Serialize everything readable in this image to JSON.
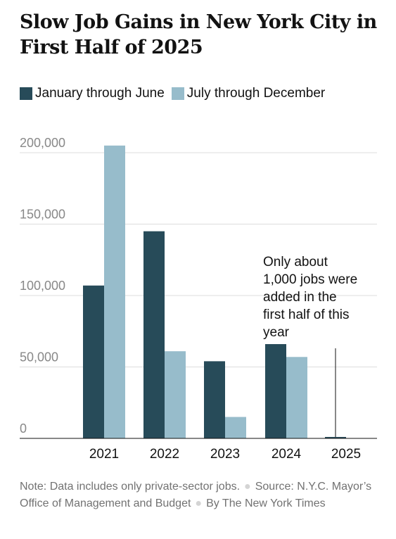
{
  "title": "Slow Job Gains in New York City in First Half of 2025",
  "colors": {
    "first_half": "#274b59",
    "second_half": "#97bccb",
    "grid": "#dddddd",
    "axis": "#121212",
    "tick_text": "#888888"
  },
  "chart_data": {
    "type": "bar",
    "categories": [
      "2021",
      "2022",
      "2023",
      "2024",
      "2025"
    ],
    "series": [
      {
        "name": "January through June",
        "values": [
          107000,
          145000,
          54000,
          66000,
          1000
        ]
      },
      {
        "name": "July through December",
        "values": [
          205000,
          61000,
          15000,
          57000,
          null
        ]
      }
    ],
    "yticks": [
      0,
      50000,
      100000,
      150000,
      200000
    ],
    "ytick_labels": [
      "0",
      "50,000",
      "100,000",
      "150,000",
      "200,000"
    ],
    "ylim": [
      0,
      210000
    ],
    "grid": true,
    "legend": "top-left",
    "annotation": {
      "lines": [
        "Only about",
        "1,000 jobs were",
        "added in the",
        "first half of this",
        "year"
      ],
      "category": "2025"
    }
  },
  "footer": {
    "note": "Note: Data includes only private-sector jobs.",
    "source": "Source: N.Y.C. Mayor’s Office of Management and Budget",
    "credit": "By The New York Times"
  }
}
